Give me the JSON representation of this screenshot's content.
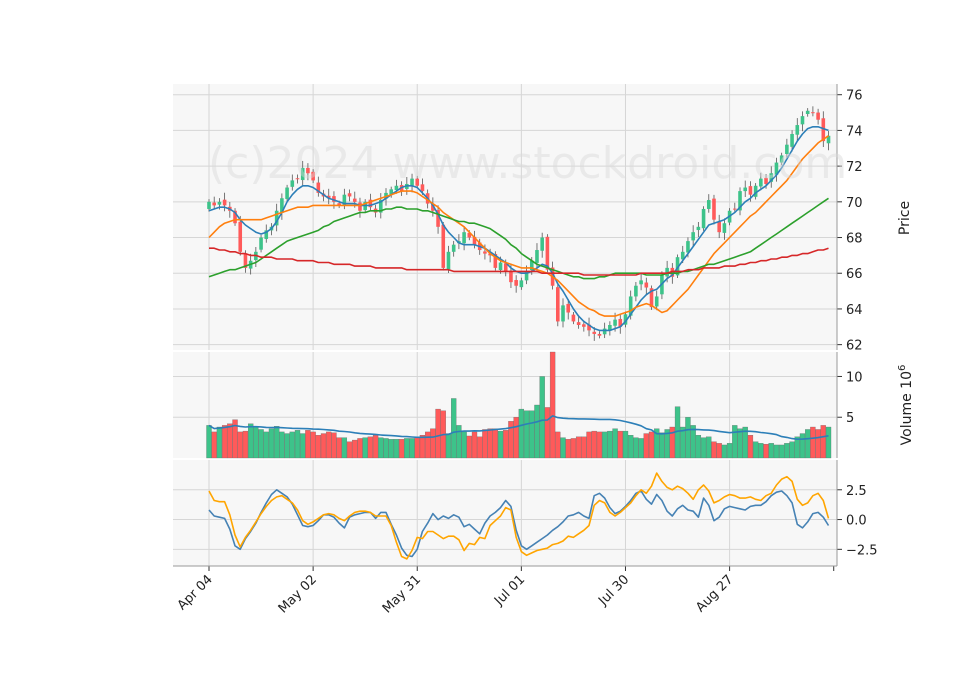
{
  "watermark": "(c)2024 www.stockdroid.com",
  "chart_data": {
    "type": "candlestick",
    "title": "",
    "x_tick_labels": [
      "Apr 04",
      "May 02",
      "May 31",
      "Jul 01",
      "Jul 30",
      "Aug 27"
    ],
    "x_ticks_bar_index": [
      0,
      20,
      40,
      60,
      80,
      100
    ],
    "n_bars": 120,
    "price_panel": {
      "ylabel": "Price",
      "ylim": [
        61.7,
        76.6
      ],
      "yticks": [
        62,
        64,
        66,
        68,
        70,
        72,
        74,
        76
      ],
      "up_color": "#3dc38a",
      "down_color": "#ff5a5a",
      "close": [
        70.0,
        69.8,
        70.0,
        69.8,
        69.5,
        68.8,
        67.2,
        66.3,
        66.7,
        67.2,
        68.0,
        68.4,
        68.6,
        69.5,
        70.2,
        70.8,
        71.2,
        71.3,
        71.9,
        71.6,
        71.2,
        70.5,
        70.3,
        70.2,
        70.0,
        69.8,
        70.4,
        70.3,
        70.0,
        69.5,
        70.0,
        69.7,
        69.4,
        70.1,
        70.5,
        70.7,
        70.9,
        70.6,
        71.0,
        71.3,
        70.9,
        70.6,
        69.9,
        69.5,
        68.6,
        66.3,
        67.2,
        67.6,
        67.8,
        68.3,
        68.0,
        67.6,
        67.3,
        67.1,
        67.0,
        66.3,
        66.6,
        66.1,
        65.5,
        65.3,
        65.6,
        66.1,
        66.7,
        67.3,
        68.0,
        66.2,
        65.3,
        63.3,
        64.2,
        63.8,
        63.3,
        63.1,
        63.0,
        62.8,
        62.6,
        62.5,
        62.9,
        63.1,
        63.4,
        63.0,
        63.7,
        64.7,
        65.3,
        65.6,
        65.2,
        64.1,
        64.7,
        65.9,
        66.3,
        65.8,
        66.9,
        67.2,
        67.8,
        68.3,
        68.6,
        69.6,
        70.1,
        69.0,
        68.3,
        68.8,
        69.5,
        69.6,
        70.6,
        70.8,
        70.4,
        70.9,
        71.3,
        71.0,
        71.6,
        72.2,
        72.6,
        73.2,
        73.8,
        74.3,
        74.8,
        75.1,
        75.0,
        74.6,
        73.4,
        73.7
      ],
      "ma_lines": [
        {
          "color": "#2c7fb8",
          "values": [
            69.5,
            69.6,
            69.7,
            69.7,
            69.6,
            69.4,
            69.0,
            68.7,
            68.5,
            68.3,
            68.2,
            68.3,
            68.5,
            68.9,
            69.4,
            70.0,
            70.4,
            70.7,
            70.9,
            70.9,
            70.8,
            70.6,
            70.4,
            70.2,
            70.1,
            70.0,
            69.9,
            69.9,
            69.9,
            69.8,
            69.8,
            69.8,
            69.9,
            70.0,
            70.2,
            70.4,
            70.6,
            70.8,
            70.9,
            70.9,
            70.8,
            70.5,
            70.2,
            69.8,
            69.3,
            68.7,
            68.3,
            68.0,
            67.7,
            67.6,
            67.6,
            67.6,
            67.5,
            67.4,
            67.2,
            67.0,
            66.8,
            66.6,
            66.3,
            66.1,
            66.0,
            66.0,
            66.1,
            66.3,
            66.5,
            66.4,
            66.0,
            65.4,
            65.0,
            64.5,
            64.0,
            63.6,
            63.3,
            63.1,
            62.9,
            62.8,
            62.8,
            62.8,
            62.9,
            63.0,
            63.3,
            63.7,
            64.1,
            64.5,
            64.8,
            65.0,
            65.1,
            65.4,
            65.7,
            65.9,
            66.3,
            66.7,
            67.1,
            67.5,
            67.9,
            68.3,
            68.7,
            68.8,
            68.9,
            69.0,
            69.2,
            69.4,
            69.7,
            70.0,
            70.2,
            70.5,
            70.7,
            70.9,
            71.2,
            71.5,
            71.9,
            72.4,
            72.9,
            73.4,
            73.8,
            74.1,
            74.2,
            74.2,
            74.1,
            74.0
          ]
        },
        {
          "color": "#ff7f0e",
          "values": [
            68.0,
            68.3,
            68.6,
            68.8,
            68.9,
            69.0,
            69.0,
            69.0,
            69.0,
            69.0,
            69.0,
            69.1,
            69.2,
            69.3,
            69.4,
            69.5,
            69.6,
            69.7,
            69.7,
            69.7,
            69.8,
            69.8,
            69.8,
            69.8,
            69.8,
            69.8,
            69.8,
            69.8,
            69.8,
            69.8,
            69.9,
            70.0,
            70.1,
            70.2,
            70.3,
            70.4,
            70.5,
            70.6,
            70.6,
            70.6,
            70.5,
            70.3,
            70.1,
            69.9,
            69.7,
            69.4,
            69.2,
            69.0,
            68.8,
            68.6,
            68.3,
            68.0,
            67.7,
            67.4,
            67.1,
            66.9,
            66.7,
            66.6,
            66.5,
            66.4,
            66.3,
            66.3,
            66.3,
            66.2,
            66.1,
            66.0,
            65.8,
            65.6,
            65.3,
            65.0,
            64.7,
            64.4,
            64.2,
            64.0,
            63.9,
            63.7,
            63.6,
            63.6,
            63.6,
            63.7,
            63.8,
            63.9,
            64.1,
            64.2,
            64.3,
            64.2,
            64.0,
            63.8,
            63.9,
            64.2,
            64.5,
            64.8,
            65.1,
            65.5,
            65.9,
            66.3,
            66.7,
            67.1,
            67.4,
            67.7,
            68.0,
            68.3,
            68.6,
            68.9,
            69.2,
            69.4,
            69.7,
            70.0,
            70.3,
            70.6,
            70.9,
            71.2,
            71.6,
            72.0,
            72.4,
            72.7,
            73.0,
            73.3,
            73.5,
            73.7
          ]
        },
        {
          "color": "#2ca02c",
          "values": [
            65.8,
            65.9,
            66.0,
            66.1,
            66.2,
            66.2,
            66.3,
            66.4,
            66.5,
            66.6,
            66.8,
            67.0,
            67.2,
            67.4,
            67.6,
            67.8,
            67.9,
            68.0,
            68.1,
            68.2,
            68.3,
            68.4,
            68.6,
            68.7,
            68.9,
            69.0,
            69.1,
            69.2,
            69.3,
            69.4,
            69.4,
            69.5,
            69.5,
            69.5,
            69.6,
            69.6,
            69.7,
            69.7,
            69.6,
            69.6,
            69.6,
            69.5,
            69.5,
            69.4,
            69.3,
            69.2,
            69.1,
            69.0,
            68.9,
            68.9,
            68.8,
            68.8,
            68.7,
            68.6,
            68.5,
            68.3,
            68.1,
            67.9,
            67.6,
            67.4,
            67.1,
            66.9,
            66.7,
            66.5,
            66.4,
            66.3,
            66.2,
            66.1,
            66.0,
            65.9,
            65.8,
            65.8,
            65.7,
            65.7,
            65.7,
            65.8,
            65.8,
            65.9,
            66.0,
            66.0,
            66.0,
            66.0,
            66.0,
            66.0,
            65.9,
            65.9,
            65.9,
            65.9,
            66.0,
            66.0,
            66.0,
            66.1,
            66.1,
            66.2,
            66.3,
            66.4,
            66.5,
            66.5,
            66.6,
            66.7,
            66.8,
            66.9,
            67.0,
            67.1,
            67.2,
            67.4,
            67.6,
            67.8,
            68.0,
            68.2,
            68.4,
            68.6,
            68.8,
            69.0,
            69.2,
            69.4,
            69.6,
            69.8,
            70.0,
            70.2
          ]
        },
        {
          "color": "#d62728",
          "values": [
            67.4,
            67.4,
            67.3,
            67.3,
            67.2,
            67.2,
            67.1,
            67.1,
            67.0,
            67.0,
            66.9,
            66.9,
            66.9,
            66.8,
            66.8,
            66.8,
            66.8,
            66.7,
            66.7,
            66.7,
            66.7,
            66.6,
            66.6,
            66.6,
            66.5,
            66.5,
            66.5,
            66.5,
            66.4,
            66.4,
            66.4,
            66.4,
            66.3,
            66.3,
            66.3,
            66.3,
            66.3,
            66.3,
            66.2,
            66.2,
            66.2,
            66.2,
            66.2,
            66.2,
            66.2,
            66.2,
            66.2,
            66.1,
            66.1,
            66.1,
            66.1,
            66.1,
            66.1,
            66.1,
            66.1,
            66.1,
            66.1,
            66.1,
            66.1,
            66.1,
            66.1,
            66.1,
            66.1,
            66.1,
            66.0,
            66.0,
            66.0,
            66.0,
            66.0,
            66.0,
            66.0,
            66.0,
            65.9,
            65.9,
            65.9,
            65.9,
            65.9,
            65.9,
            65.9,
            65.9,
            65.9,
            65.9,
            65.9,
            66.0,
            66.0,
            66.0,
            66.0,
            66.0,
            66.0,
            66.1,
            66.1,
            66.1,
            66.2,
            66.2,
            66.2,
            66.3,
            66.3,
            66.3,
            66.3,
            66.4,
            66.4,
            66.4,
            66.5,
            66.5,
            66.6,
            66.6,
            66.7,
            66.7,
            66.8,
            66.8,
            66.9,
            66.9,
            67.0,
            67.0,
            67.1,
            67.1,
            67.2,
            67.3,
            67.3,
            67.4
          ]
        }
      ]
    },
    "volume_panel": {
      "ylabel": "Volume  10^6",
      "ylim": [
        0,
        13
      ],
      "yticks": [
        5,
        10
      ],
      "values": [
        4.0,
        3.2,
        3.8,
        4.0,
        4.2,
        4.7,
        3.2,
        3.3,
        4.2,
        3.8,
        3.5,
        3.2,
        3.6,
        3.9,
        3.2,
        3.0,
        3.2,
        3.4,
        3.0,
        3.4,
        3.2,
        2.8,
        3.0,
        3.2,
        3.1,
        2.5,
        2.5,
        2.0,
        2.2,
        2.4,
        2.5,
        2.6,
        2.8,
        2.5,
        2.4,
        2.3,
        2.3,
        2.3,
        2.4,
        2.4,
        2.5,
        2.8,
        3.2,
        3.6,
        6.0,
        5.8,
        3.0,
        7.3,
        4.0,
        3.2,
        2.7,
        3.2,
        2.6,
        3.5,
        3.6,
        3.6,
        3.3,
        3.4,
        4.5,
        5.0,
        6.0,
        5.8,
        5.8,
        6.5,
        10.0,
        6.2,
        13.0,
        3.2,
        2.5,
        2.3,
        2.4,
        2.6,
        2.6,
        3.2,
        3.3,
        3.2,
        3.2,
        3.3,
        3.6,
        3.3,
        3.3,
        2.8,
        2.5,
        2.4,
        3.0,
        3.2,
        3.6,
        3.1,
        3.5,
        3.8,
        6.3,
        3.8,
        5.0,
        4.0,
        2.8,
        2.5,
        2.6,
        2.0,
        1.8,
        1.6,
        1.8,
        4.0,
        3.6,
        3.8,
        2.8,
        2.0,
        1.8,
        1.7,
        1.8,
        1.6,
        1.6,
        1.8,
        2.0,
        2.6,
        3.0,
        3.5,
        3.8,
        3.5,
        4.0,
        3.8
      ]
    },
    "indicator_panel": {
      "ylim": [
        -3.9,
        5.0
      ],
      "yticks": [
        -2.5,
        0.0,
        2.5
      ],
      "series": [
        {
          "color": "#4682b4",
          "values": [
            0.8,
            0.3,
            0.2,
            0.1,
            -0.8,
            -2.2,
            -2.5,
            -1.6,
            -1.0,
            -0.3,
            0.6,
            1.4,
            2.1,
            2.5,
            2.2,
            1.9,
            1.3,
            0.4,
            -0.5,
            -0.6,
            -0.5,
            -0.1,
            0.4,
            0.4,
            0.2,
            -0.3,
            -0.7,
            0.2,
            0.4,
            0.5,
            0.6,
            0.6,
            0.1,
            0.6,
            0.6,
            -0.4,
            -1.3,
            -2.4,
            -3.0,
            -3.1,
            -2.5,
            -1.0,
            -0.3,
            0.5,
            0.0,
            0.3,
            0.1,
            0.4,
            0.2,
            -0.6,
            -0.4,
            -0.8,
            -1.2,
            -0.3,
            0.3,
            0.6,
            1.0,
            1.6,
            1.1,
            -0.9,
            -2.2,
            -2.5,
            -2.2,
            -1.9,
            -1.6,
            -1.3,
            -0.9,
            -0.6,
            -0.2,
            0.3,
            0.4,
            0.6,
            0.3,
            0.1,
            2.0,
            2.2,
            1.8,
            1.0,
            0.5,
            0.7,
            1.1,
            1.6,
            2.2,
            2.4,
            1.7,
            1.3,
            2.1,
            1.6,
            0.7,
            0.3,
            0.9,
            1.2,
            0.8,
            0.7,
            0.2,
            1.8,
            1.2,
            -0.1,
            0.2,
            0.9,
            1.1,
            1.0,
            0.9,
            0.8,
            1.1,
            1.2,
            1.2,
            1.5,
            2.0,
            2.3,
            2.4,
            2.0,
            1.4,
            -0.4,
            -0.7,
            -0.2,
            0.5,
            0.6,
            0.2,
            -0.5
          ]
        },
        {
          "color": "#ffa500",
          "values": [
            2.4,
            1.6,
            1.5,
            1.5,
            0.4,
            -1.3,
            -2.3,
            -1.5,
            -0.9,
            -0.2,
            0.5,
            1.1,
            1.6,
            1.9,
            2.0,
            1.7,
            1.4,
            0.8,
            -0.1,
            -0.4,
            -0.2,
            0.1,
            0.4,
            0.5,
            0.4,
            0.1,
            -0.1,
            0.3,
            0.6,
            0.7,
            0.7,
            0.6,
            0.3,
            0.3,
            0.3,
            -0.5,
            -1.9,
            -3.1,
            -3.3,
            -2.6,
            -1.5,
            -1.6,
            -1.0,
            -1.0,
            -1.3,
            -1.6,
            -1.4,
            -1.4,
            -1.7,
            -2.6,
            -2.0,
            -2.1,
            -1.5,
            -1.6,
            -0.5,
            -0.1,
            0.3,
            1.0,
            0.8,
            -1.5,
            -2.7,
            -3.0,
            -2.8,
            -2.6,
            -2.5,
            -2.4,
            -2.1,
            -2.0,
            -1.8,
            -1.4,
            -1.5,
            -1.2,
            -0.9,
            -0.5,
            1.2,
            1.6,
            1.4,
            0.6,
            0.3,
            0.6,
            1.0,
            1.4,
            2.0,
            2.5,
            2.2,
            2.8,
            3.9,
            3.2,
            2.7,
            2.5,
            2.8,
            2.6,
            2.2,
            1.7,
            2.5,
            2.9,
            2.4,
            1.4,
            1.6,
            1.9,
            2.1,
            2.0,
            1.8,
            1.8,
            1.9,
            1.7,
            1.6,
            2.0,
            2.2,
            2.9,
            3.4,
            3.6,
            3.2,
            1.7,
            1.2,
            1.4,
            2.0,
            2.2,
            1.6,
            0.1
          ]
        }
      ]
    }
  }
}
